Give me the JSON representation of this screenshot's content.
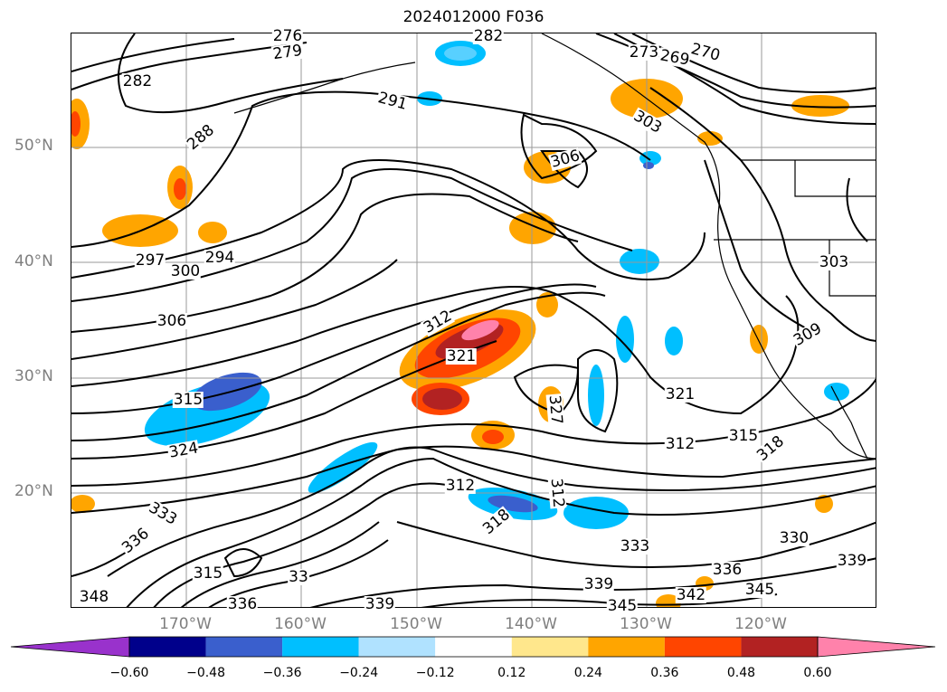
{
  "title": "2024012000 F036",
  "lat_labels": [
    "50°N",
    "40°N",
    "30°N",
    "20°N"
  ],
  "lon_labels": [
    "170°W",
    "160°W",
    "150°W",
    "140°W",
    "130°W",
    "120°W"
  ],
  "contour_labels": [
    "276",
    "279",
    "282",
    "282",
    "273",
    "270",
    "269",
    "288",
    "291",
    "303",
    "306",
    "294",
    "297",
    "300",
    "306",
    "312",
    "321",
    "303",
    "309",
    "315",
    "324",
    "327",
    "321",
    "315",
    "318",
    "312",
    "333",
    "339",
    "336",
    "318",
    "312",
    "312",
    "330",
    "339",
    "315",
    "333",
    "336",
    "342",
    "345",
    "339",
    "345",
    "348",
    "336",
    "33"
  ],
  "colorbar": {
    "ticks": [
      "−0.60",
      "−0.48",
      "−0.36",
      "−0.24",
      "−0.12",
      "0.12",
      "0.24",
      "0.36",
      "0.48",
      "0.60"
    ],
    "colors": {
      "below": "#9932cc",
      "bins": [
        "#00008b",
        "#3a5fcd",
        "#00bfff",
        "#b0e2ff",
        "#ffffff",
        "#ffe78c",
        "#ffa500",
        "#ff4500",
        "#b22222",
        "#ff82ab"
      ],
      "above": "#ff82ab"
    }
  }
}
